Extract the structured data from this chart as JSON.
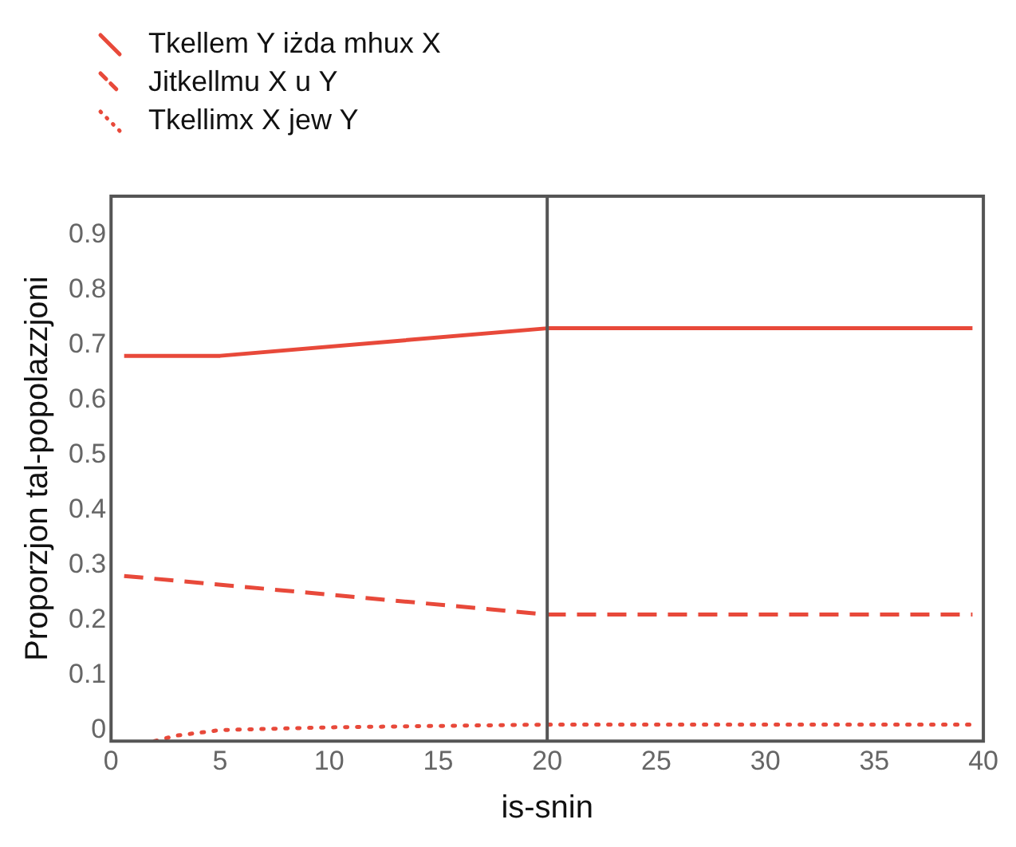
{
  "chart_data": {
    "type": "line",
    "xlabel": "is-snin",
    "ylabel": "Proporzjon tal-popolazzjoni",
    "xlim": [
      0,
      40
    ],
    "xticks": [
      0,
      5,
      10,
      15,
      20,
      25,
      30,
      35,
      40
    ],
    "ylim": [
      -0.02,
      0.97
    ],
    "yticks": [
      0,
      0.1,
      0.2,
      0.3,
      0.4,
      0.5,
      0.6,
      0.7,
      0.8,
      0.9
    ],
    "legend": "top left",
    "grid": false,
    "marker": "none",
    "ref_lines": [
      {
        "axis": "x",
        "value": 20,
        "color": "#555555"
      }
    ],
    "series": [
      {
        "name": "Tkellem Y iżda mhux X",
        "color": "#e8493a",
        "line_style": "solid",
        "x": [
          0.6,
          5,
          20,
          39.5
        ],
        "values": [
          0.68,
          0.68,
          0.73,
          0.73
        ]
      },
      {
        "name": "Jitkellmu X u Y",
        "color": "#e8493a",
        "line_style": "dashed",
        "x": [
          0.6,
          20,
          39.5
        ],
        "values": [
          0.28,
          0.21,
          0.21
        ]
      },
      {
        "name": "Tkellimx X jew Y",
        "color": "#e8493a",
        "line_style": "dotted",
        "x": [
          2,
          3,
          5,
          10,
          20,
          39.5
        ],
        "values": [
          -0.02,
          -0.01,
          0,
          0.005,
          0.01,
          0.01
        ]
      }
    ]
  }
}
